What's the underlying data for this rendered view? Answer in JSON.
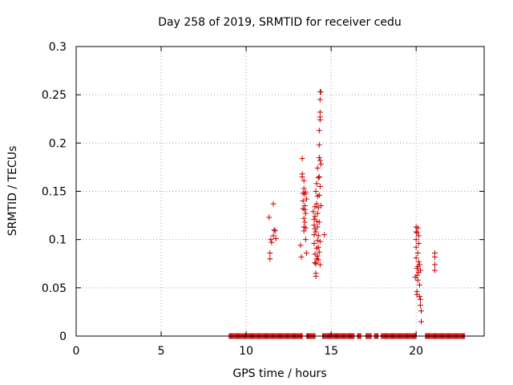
{
  "chart_data": {
    "type": "scatter",
    "title": "Day 258 of 2019, SRMTID for receiver cedu",
    "xlabel": "GPS time / hours",
    "ylabel": "SRMTID / TECUs",
    "xlim": [
      0,
      24
    ],
    "ylim": [
      0,
      0.3
    ],
    "xticks": [
      0,
      5,
      10,
      15,
      20
    ],
    "xtick_labels": [
      "0",
      "5",
      "10",
      "15",
      "20"
    ],
    "yticks": [
      0,
      0.05,
      0.1,
      0.15,
      0.2,
      0.25,
      0.3
    ],
    "ytick_labels": [
      "0",
      "0.05",
      "0.1",
      "0.15",
      "0.2",
      "0.25",
      "0.3"
    ],
    "grid": true,
    "marker": "+",
    "color": "#cc0000",
    "zero_segments": [
      [
        9.0,
        13.3
      ],
      [
        13.55,
        14.05
      ],
      [
        14.5,
        16.35
      ],
      [
        16.55,
        16.75
      ],
      [
        17.05,
        17.35
      ],
      [
        17.55,
        17.75
      ],
      [
        17.95,
        20.0
      ],
      [
        20.55,
        22.85
      ]
    ],
    "zero_spacing_hours": 0.05,
    "points": [
      [
        11.35,
        0.123
      ],
      [
        11.4,
        0.08
      ],
      [
        11.4,
        0.086
      ],
      [
        11.45,
        0.1
      ],
      [
        11.5,
        0.097
      ],
      [
        11.6,
        0.137
      ],
      [
        11.6,
        0.104
      ],
      [
        11.65,
        0.11
      ],
      [
        11.7,
        0.109
      ],
      [
        11.75,
        0.101
      ],
      [
        13.2,
        0.094
      ],
      [
        13.25,
        0.082
      ],
      [
        13.3,
        0.184
      ],
      [
        13.3,
        0.168
      ],
      [
        13.3,
        0.165
      ],
      [
        13.35,
        0.148
      ],
      [
        13.35,
        0.14
      ],
      [
        13.35,
        0.132
      ],
      [
        13.4,
        0.161
      ],
      [
        13.4,
        0.153
      ],
      [
        13.4,
        0.122
      ],
      [
        13.4,
        0.113
      ],
      [
        13.4,
        0.109
      ],
      [
        13.45,
        0.147
      ],
      [
        13.45,
        0.135
      ],
      [
        13.45,
        0.131
      ],
      [
        13.45,
        0.118
      ],
      [
        13.5,
        0.149
      ],
      [
        13.5,
        0.127
      ],
      [
        13.5,
        0.112
      ],
      [
        13.5,
        0.1
      ],
      [
        13.55,
        0.142
      ],
      [
        13.55,
        0.086
      ],
      [
        13.95,
        0.129
      ],
      [
        14.0,
        0.121
      ],
      [
        14.0,
        0.115
      ],
      [
        14.0,
        0.105
      ],
      [
        14.0,
        0.096
      ],
      [
        14.05,
        0.134
      ],
      [
        14.05,
        0.124
      ],
      [
        14.05,
        0.111
      ],
      [
        14.05,
        0.085
      ],
      [
        14.05,
        0.076
      ],
      [
        14.1,
        0.15
      ],
      [
        14.1,
        0.108
      ],
      [
        14.1,
        0.075
      ],
      [
        14.1,
        0.065
      ],
      [
        14.1,
        0.062
      ],
      [
        14.15,
        0.158
      ],
      [
        14.15,
        0.137
      ],
      [
        14.15,
        0.119
      ],
      [
        14.15,
        0.091
      ],
      [
        14.15,
        0.08
      ],
      [
        14.2,
        0.174
      ],
      [
        14.2,
        0.145
      ],
      [
        14.2,
        0.127
      ],
      [
        14.2,
        0.113
      ],
      [
        14.2,
        0.099
      ],
      [
        14.2,
        0.083
      ],
      [
        14.25,
        0.164
      ],
      [
        14.25,
        0.133
      ],
      [
        14.25,
        0.104
      ],
      [
        14.25,
        0.092
      ],
      [
        14.25,
        0.079
      ],
      [
        14.3,
        0.213
      ],
      [
        14.3,
        0.198
      ],
      [
        14.3,
        0.185
      ],
      [
        14.3,
        0.165
      ],
      [
        14.3,
        0.146
      ],
      [
        14.3,
        0.118
      ],
      [
        14.3,
        0.087
      ],
      [
        14.35,
        0.253
      ],
      [
        14.35,
        0.245
      ],
      [
        14.35,
        0.232
      ],
      [
        14.35,
        0.227
      ],
      [
        14.35,
        0.224
      ],
      [
        14.35,
        0.182
      ],
      [
        14.35,
        0.155
      ],
      [
        14.35,
        0.098
      ],
      [
        14.35,
        0.074
      ],
      [
        14.4,
        0.253
      ],
      [
        14.4,
        0.178
      ],
      [
        14.4,
        0.135
      ],
      [
        14.6,
        0.105
      ],
      [
        19.95,
        0.061
      ],
      [
        20.0,
        0.113
      ],
      [
        20.0,
        0.108
      ],
      [
        20.0,
        0.1
      ],
      [
        20.0,
        0.092
      ],
      [
        20.0,
        0.081
      ],
      [
        20.05,
        0.107
      ],
      [
        20.05,
        0.07
      ],
      [
        20.05,
        0.063
      ],
      [
        20.05,
        0.046
      ],
      [
        20.05,
        0.043
      ],
      [
        20.1,
        0.112
      ],
      [
        20.1,
        0.086
      ],
      [
        20.1,
        0.072
      ],
      [
        20.1,
        0.058
      ],
      [
        20.15,
        0.104
      ],
      [
        20.15,
        0.096
      ],
      [
        20.15,
        0.077
      ],
      [
        20.15,
        0.066
      ],
      [
        20.2,
        0.074
      ],
      [
        20.2,
        0.053
      ],
      [
        20.2,
        0.041
      ],
      [
        20.25,
        0.068
      ],
      [
        20.25,
        0.038
      ],
      [
        20.25,
        0.032
      ],
      [
        20.3,
        0.026
      ],
      [
        20.3,
        0.015
      ],
      [
        21.1,
        0.086
      ],
      [
        21.1,
        0.082
      ],
      [
        21.1,
        0.074
      ],
      [
        21.1,
        0.068
      ]
    ]
  }
}
